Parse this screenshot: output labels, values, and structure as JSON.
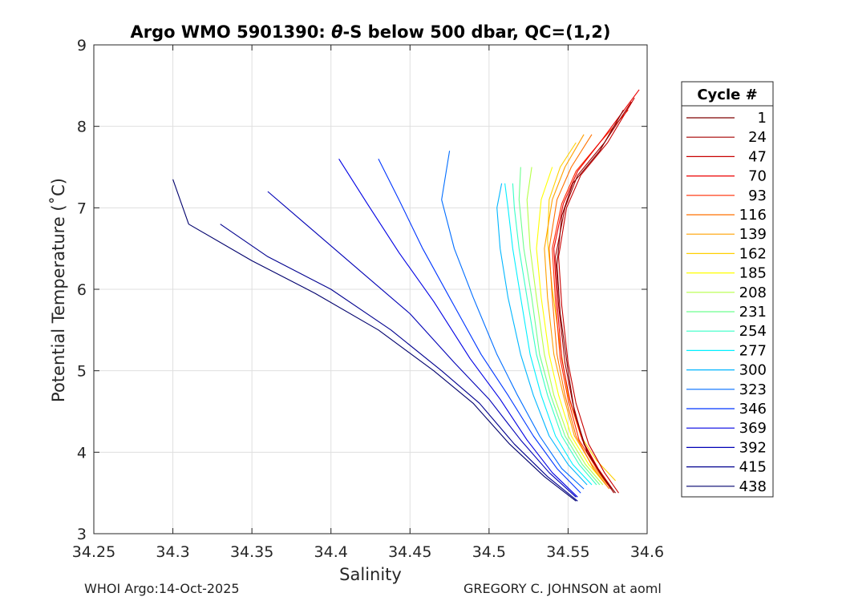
{
  "chart_data": {
    "type": "line",
    "title_prefix": "Argo WMO 5901390: ",
    "title_theta": "θ",
    "title_suffix": "-S below 500 dbar,  QC=(1,2)",
    "xlabel": "Salinity",
    "ylabel": "Potential Temperature (˚C)",
    "xlim": [
      34.25,
      34.6
    ],
    "ylim": [
      3,
      9
    ],
    "xticks": [
      "34.25",
      "34.3",
      "34.35",
      "34.4",
      "34.45",
      "34.5",
      "34.55",
      "34.6"
    ],
    "yticks": [
      "3",
      "4",
      "5",
      "6",
      "7",
      "8",
      "9"
    ],
    "grid": true,
    "legend": {
      "title": "Cycle #",
      "placement": "right outside",
      "entries": [
        {
          "label": "1",
          "color": "#7f0000"
        },
        {
          "label": "24",
          "color": "#a50000"
        },
        {
          "label": "47",
          "color": "#c80000"
        },
        {
          "label": "70",
          "color": "#ec0000"
        },
        {
          "label": "93",
          "color": "#ff2a00"
        },
        {
          "label": "116",
          "color": "#ff7200"
        },
        {
          "label": "139",
          "color": "#ffa000"
        },
        {
          "label": "162",
          "color": "#ffd000"
        },
        {
          "label": "185",
          "color": "#ffff00"
        },
        {
          "label": "208",
          "color": "#b6ff48"
        },
        {
          "label": "231",
          "color": "#6dff8f"
        },
        {
          "label": "254",
          "color": "#36ffc6"
        },
        {
          "label": "277",
          "color": "#00f0ff"
        },
        {
          "label": "300",
          "color": "#00b6ff"
        },
        {
          "label": "323",
          "color": "#006dff"
        },
        {
          "label": "346",
          "color": "#0036ff"
        },
        {
          "label": "369",
          "color": "#0000e4"
        },
        {
          "label": "392",
          "color": "#0000b6"
        },
        {
          "label": "415",
          "color": "#00008f"
        },
        {
          "label": "438",
          "color": "#00006d"
        }
      ]
    },
    "series": [
      {
        "cycle": 1,
        "color": "#7f0000",
        "x": [
          34.58,
          34.572,
          34.562,
          34.554,
          34.55,
          34.545,
          34.543,
          34.546,
          34.553,
          34.57,
          34.585
        ],
        "y": [
          3.5,
          3.7,
          4.0,
          4.5,
          5.0,
          5.7,
          6.3,
          6.9,
          7.3,
          7.7,
          8.2
        ]
      },
      {
        "cycle": 24,
        "color": "#a50000",
        "x": [
          34.579,
          34.57,
          34.56,
          34.553,
          34.548,
          34.544,
          34.542,
          34.548,
          34.556,
          34.573,
          34.59
        ],
        "y": [
          3.5,
          3.75,
          4.1,
          4.6,
          5.1,
          5.8,
          6.4,
          7.0,
          7.4,
          7.8,
          8.3
        ]
      },
      {
        "cycle": 47,
        "color": "#c80000",
        "x": [
          34.582,
          34.573,
          34.563,
          34.555,
          34.55,
          34.546,
          34.544,
          34.549,
          34.558,
          34.575,
          34.592
        ],
        "y": [
          3.5,
          3.75,
          4.1,
          4.6,
          5.1,
          5.8,
          6.4,
          7.0,
          7.4,
          7.8,
          8.35
        ]
      },
      {
        "cycle": 70,
        "color": "#ec0000",
        "x": [
          34.578,
          34.569,
          34.559,
          34.551,
          34.546,
          34.543,
          34.541,
          34.547,
          34.556,
          34.572,
          34.595
        ],
        "y": [
          3.55,
          3.8,
          4.15,
          4.65,
          5.15,
          5.85,
          6.5,
          7.05,
          7.45,
          7.85,
          8.45
        ]
      },
      {
        "cycle": 93,
        "color": "#ff2a00",
        "x": [
          34.577,
          34.568,
          34.557,
          34.55,
          34.545,
          34.542,
          34.54,
          34.546,
          34.555,
          34.57,
          34.588
        ],
        "y": [
          3.55,
          3.8,
          4.15,
          4.65,
          5.15,
          5.85,
          6.5,
          7.05,
          7.45,
          7.8,
          8.2
        ]
      },
      {
        "cycle": 116,
        "color": "#ff7200",
        "x": [
          34.576,
          34.566,
          34.555,
          34.548,
          34.543,
          34.54,
          34.538,
          34.543,
          34.552,
          34.565
        ],
        "y": [
          3.55,
          3.8,
          4.2,
          4.7,
          5.2,
          5.9,
          6.5,
          7.1,
          7.5,
          7.9
        ]
      },
      {
        "cycle": 139,
        "color": "#ffa000",
        "x": [
          34.575,
          34.565,
          34.554,
          34.547,
          34.541,
          34.537,
          34.535,
          34.54,
          34.548,
          34.56
        ],
        "y": [
          3.6,
          3.85,
          4.2,
          4.7,
          5.2,
          5.9,
          6.5,
          7.1,
          7.5,
          7.9
        ]
      },
      {
        "cycle": 162,
        "color": "#ffd000",
        "x": [
          34.58,
          34.568,
          34.558,
          34.55,
          34.545,
          34.54,
          34.537,
          34.538,
          34.545,
          34.555
        ],
        "y": [
          3.65,
          3.9,
          4.2,
          4.7,
          5.3,
          6.0,
          6.6,
          7.1,
          7.5,
          7.8
        ]
      },
      {
        "cycle": 185,
        "color": "#ffff00",
        "x": [
          34.574,
          34.563,
          34.552,
          34.544,
          34.538,
          34.533,
          34.53,
          34.533,
          34.54
        ],
        "y": [
          3.6,
          3.85,
          4.2,
          4.7,
          5.2,
          5.9,
          6.5,
          7.1,
          7.5
        ]
      },
      {
        "cycle": 208,
        "color": "#b6ff48",
        "x": [
          34.572,
          34.561,
          34.55,
          34.541,
          34.535,
          34.53,
          34.526,
          34.524,
          34.527
        ],
        "y": [
          3.6,
          3.85,
          4.2,
          4.7,
          5.2,
          5.9,
          6.5,
          7.1,
          7.5
        ]
      },
      {
        "cycle": 231,
        "color": "#6dff8f",
        "x": [
          34.57,
          34.559,
          34.548,
          34.539,
          34.532,
          34.527,
          34.522,
          34.519,
          34.52
        ],
        "y": [
          3.6,
          3.85,
          4.2,
          4.7,
          5.2,
          5.9,
          6.5,
          7.1,
          7.5
        ]
      },
      {
        "cycle": 254,
        "color": "#36ffc6",
        "x": [
          34.568,
          34.557,
          34.546,
          34.537,
          34.53,
          34.524,
          34.519,
          34.516,
          34.515
        ],
        "y": [
          3.6,
          3.85,
          4.2,
          4.7,
          5.2,
          5.9,
          6.5,
          7.0,
          7.3
        ]
      },
      {
        "cycle": 277,
        "color": "#00f0ff",
        "x": [
          34.565,
          34.553,
          34.542,
          34.533,
          34.526,
          34.52,
          34.515,
          34.512,
          34.51
        ],
        "y": [
          3.6,
          3.85,
          4.2,
          4.7,
          5.2,
          5.9,
          6.5,
          7.0,
          7.3
        ]
      },
      {
        "cycle": 300,
        "color": "#00b6ff",
        "x": [
          34.562,
          34.55,
          34.538,
          34.528,
          34.52,
          34.512,
          34.507,
          34.505,
          34.508
        ],
        "y": [
          3.6,
          3.85,
          4.2,
          4.7,
          5.2,
          5.9,
          6.5,
          7.0,
          7.3
        ]
      },
      {
        "cycle": 323,
        "color": "#006dff",
        "x": [
          34.56,
          34.546,
          34.532,
          34.518,
          34.505,
          34.49,
          34.478,
          34.47,
          34.475
        ],
        "y": [
          3.55,
          3.8,
          4.2,
          4.7,
          5.2,
          5.9,
          6.5,
          7.1,
          7.7
        ]
      },
      {
        "cycle": 346,
        "color": "#0036ff",
        "x": [
          34.558,
          34.543,
          34.528,
          34.512,
          34.495,
          34.475,
          34.458,
          34.443,
          34.43
        ],
        "y": [
          3.5,
          3.8,
          4.2,
          4.7,
          5.2,
          5.9,
          6.5,
          7.1,
          7.6
        ]
      },
      {
        "cycle": 369,
        "color": "#0000e4",
        "x": [
          34.556,
          34.54,
          34.524,
          34.507,
          34.488,
          34.465,
          34.443,
          34.423,
          34.405
        ],
        "y": [
          3.45,
          3.75,
          4.15,
          4.65,
          5.15,
          5.85,
          6.45,
          7.05,
          7.6
        ]
      },
      {
        "cycle": 392,
        "color": "#0000b6",
        "x": [
          34.555,
          34.538,
          34.52,
          34.5,
          34.478,
          34.45,
          34.42,
          34.39,
          34.36
        ],
        "y": [
          3.45,
          3.75,
          4.15,
          4.65,
          5.1,
          5.7,
          6.2,
          6.7,
          7.2
        ]
      },
      {
        "cycle": 415,
        "color": "#00008f",
        "x": [
          34.556,
          34.537,
          34.516,
          34.494,
          34.47,
          34.438,
          34.4,
          34.36,
          34.33
        ],
        "y": [
          3.4,
          3.7,
          4.1,
          4.6,
          5.0,
          5.5,
          6.0,
          6.4,
          6.8
        ]
      },
      {
        "cycle": 438,
        "color": "#00006d",
        "x": [
          34.555,
          34.535,
          34.513,
          34.49,
          34.465,
          34.43,
          34.39,
          34.35,
          34.31,
          34.3
        ],
        "y": [
          3.4,
          3.7,
          4.1,
          4.6,
          5.0,
          5.5,
          5.95,
          6.35,
          6.8,
          7.35
        ]
      }
    ]
  },
  "footer": {
    "left": "WHOI Argo:14-Oct-2025",
    "right": "GREGORY C. JOHNSON at aoml"
  }
}
